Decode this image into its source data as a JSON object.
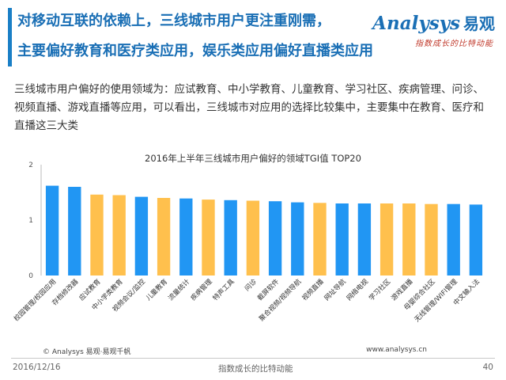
{
  "slide": {
    "title_line1": "对移动互联的依赖上，三线城市用户更注重刚需，",
    "title_line2": "主要偏好教育和医疗类应用，娱乐类应用偏好直播类应用",
    "body": "三线城市用户偏好的使用领域为：应试教育、中小学教育、儿童教育、学习社区、疾病管理、问诊、视频直播、游戏直播等应用，可以看出，三线城市对应用的选择比较集中，主要集中在教育、医疗和直播这三大类"
  },
  "logo": {
    "main": "nalysys",
    "prefix": "A",
    "cn": "易观",
    "tagline": "指数成长的比特动能"
  },
  "footer": {
    "source": "© Analysys 易观·易观千帆",
    "website": "www.analysys.cn",
    "date": "2016/12/16",
    "slogan": "指数成长的比特动能",
    "page": "40"
  },
  "colors": {
    "blue": "#2196f3",
    "orange": "#ffc04d",
    "accent": "#1a6fb5"
  },
  "chart_data": {
    "type": "bar",
    "title": "2016年上半年三线城市用户偏好的领域TGI值 TOP20",
    "ylim": [
      0,
      2
    ],
    "yticks": [
      0,
      1,
      2
    ],
    "grid": false,
    "categories": [
      "校园管理/校园应用",
      "存档修改器",
      "应试教育",
      "中小学类教育",
      "视频会议/监控",
      "儿童教育",
      "流量统计",
      "疾病管理",
      "特声工具",
      "问诊",
      "截屏软件",
      "聚合视频/视频导航",
      "视频直播",
      "网址导航",
      "网络电视",
      "学习社区",
      "游戏直播",
      "母婴综合社区",
      "无线管理/WIFI管理",
      "中文输入法"
    ],
    "values": [
      1.62,
      1.6,
      1.46,
      1.45,
      1.42,
      1.4,
      1.39,
      1.37,
      1.36,
      1.35,
      1.34,
      1.32,
      1.31,
      1.3,
      1.3,
      1.3,
      1.3,
      1.29,
      1.29,
      1.28
    ],
    "bar_colors": [
      "blue",
      "blue",
      "orange",
      "orange",
      "blue",
      "orange",
      "blue",
      "orange",
      "blue",
      "orange",
      "blue",
      "blue",
      "orange",
      "blue",
      "blue",
      "orange",
      "orange",
      "orange",
      "blue",
      "blue"
    ]
  }
}
